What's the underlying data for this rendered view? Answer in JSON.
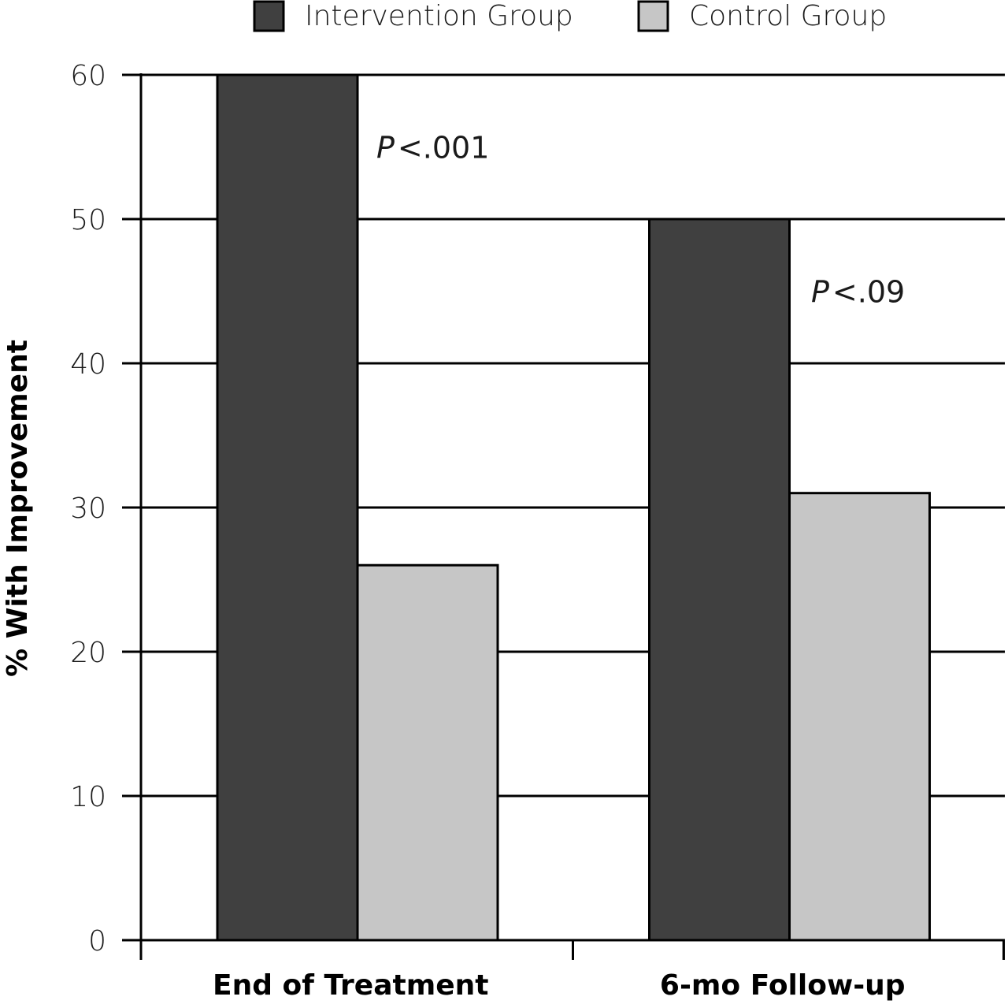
{
  "colors": {
    "intervention": "#404040",
    "control": "#c6c6c6",
    "gridline": "#000000",
    "bar_outline": "#000000"
  },
  "chart_data": {
    "type": "bar",
    "title": "",
    "xlabel": "",
    "ylabel": "% With Improvement",
    "ylim": [
      0,
      60
    ],
    "yticks": [
      0,
      10,
      20,
      30,
      40,
      50,
      60
    ],
    "grid": true,
    "legend_position": "top",
    "categories": [
      "End of Treatment",
      "6-mo Follow-up"
    ],
    "series": [
      {
        "name": "Intervention Group",
        "values": [
          60,
          50
        ]
      },
      {
        "name": "Control Group",
        "values": [
          26,
          31
        ]
      }
    ],
    "annotations": [
      {
        "category": "End of Treatment",
        "p_symbol": "P",
        "text": "<.001",
        "y": 55
      },
      {
        "category": "6-mo Follow-up",
        "p_symbol": "P",
        "text": "<.09",
        "y": 45
      }
    ]
  }
}
